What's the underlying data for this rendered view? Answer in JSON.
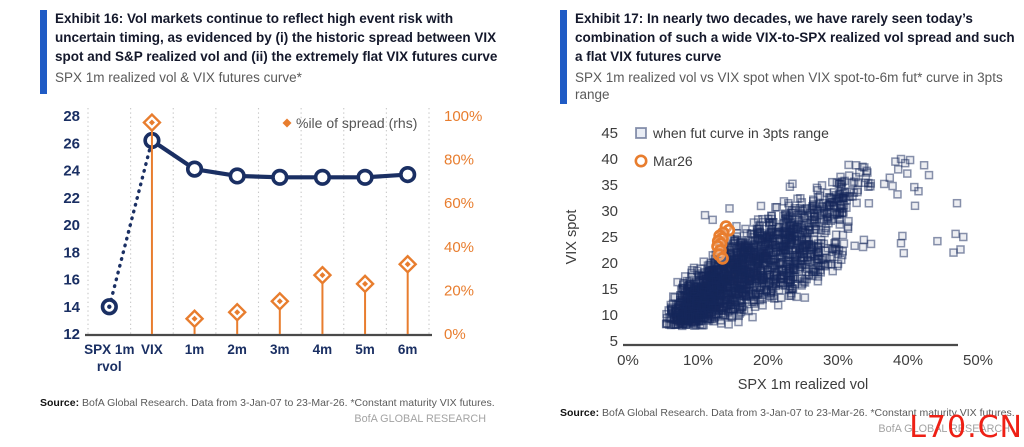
{
  "page": {
    "watermark": "L70.CN"
  },
  "colors": {
    "navy": "#1a2f63",
    "orange": "#e87d2e",
    "accent_bar_blue": "#1f5bc5",
    "grid": "#c8c8c8",
    "axis_line": "#4a4a4a",
    "axis_text_gray": "#3d3d3d",
    "legend_text": "#555555",
    "scatter_stroke": "rgba(21,40,92,0.5)",
    "scatter_fill": "rgba(21,40,92,0.08)",
    "watermark_red": "#ee2015"
  },
  "left_panel": {
    "exhibit_title": "Exhibit 16: Vol markets continue to reflect high event risk with uncertain timing, as evidenced by (i) the historic spread between VIX spot and S&P realized vol and (ii) the extremely flat VIX futures curve",
    "subtitle": "SPX 1m realized vol & VIX futures curve*",
    "source_label": "Source:",
    "source_text": " BofA Global Research. Data from 3-Jan-07 to 23-Mar-26. *Constant maturity VIX futures.",
    "brand": "BofA GLOBAL RESEARCH",
    "chart_data": {
      "type": "line",
      "categories": [
        "SPX 1m\nrvol",
        "VIX",
        "1m",
        "2m",
        "3m",
        "4m",
        "5m",
        "6m"
      ],
      "series": [
        {
          "name": "SPX 1m realized vol & VIX futures curve",
          "axis": "left",
          "values": [
            14.0,
            26.2,
            24.1,
            23.6,
            23.5,
            23.5,
            23.5,
            23.7
          ],
          "dotted_segment": [
            0,
            1
          ]
        },
        {
          "name": "%ile of spread (rhs)",
          "axis": "right",
          "marker": "diamond-lollipop",
          "values": [
            null,
            97,
            7,
            10,
            15,
            27,
            23,
            32
          ]
        }
      ],
      "left_axis": {
        "min": 12,
        "max": 28,
        "ticks": [
          12,
          14,
          16,
          18,
          20,
          22,
          24,
          26,
          28
        ]
      },
      "right_axis": {
        "min": 0,
        "max": 100,
        "ticks": [
          "0%",
          "20%",
          "40%",
          "60%",
          "80%",
          "100%"
        ]
      },
      "legend": [
        {
          "label": "%ile of spread (rhs)",
          "marker": "diamond"
        }
      ],
      "grid": "vertical-dotted"
    }
  },
  "right_panel": {
    "exhibit_title": "Exhibit 17: In nearly two decades, we have rarely seen today’s combination of such a wide VIX-to-SPX realized vol spread and such a flat VIX futures curve",
    "subtitle": "SPX 1m realized vol vs VIX spot when VIX spot-to-6m fut* curve in 3pts range",
    "source_label": "Source:",
    "source_text": " BofA Global Research. Data from 3-Jan-07 to 23-Mar-26. *Constant maturity VIX futures.",
    "brand": "BofA GLOBAL RESEARCH",
    "chart_data": {
      "type": "scatter",
      "xlabel": "SPX 1m realized vol",
      "ylabel": "VIX spot",
      "x_axis": {
        "min": 0,
        "max": 50,
        "ticks": [
          "0%",
          "10%",
          "20%",
          "30%",
          "40%",
          "50%"
        ]
      },
      "y_axis": {
        "min": 5,
        "max": 45,
        "ticks": [
          5,
          10,
          15,
          20,
          25,
          30,
          35,
          40,
          45
        ]
      },
      "legend": [
        {
          "label": "when fut curve in 3pts range",
          "marker": "square"
        },
        {
          "label": "Mar26",
          "marker": "circle"
        }
      ],
      "series": [
        {
          "name": "when fut curve in 3pts range",
          "marker": "square",
          "seed": 7,
          "clusters": [
            {
              "cx": 9.5,
              "cy": 12.5,
              "sx": 2.2,
              "sy": 2.4,
              "slope": 1.0,
              "n": 420
            },
            {
              "cx": 13.0,
              "cy": 16.0,
              "sx": 2.6,
              "sy": 3.2,
              "slope": 0.9,
              "n": 360
            },
            {
              "cx": 17.0,
              "cy": 20.0,
              "sx": 2.8,
              "sy": 3.6,
              "slope": 0.9,
              "n": 300
            },
            {
              "cx": 21.0,
              "cy": 23.0,
              "sx": 3.0,
              "sy": 3.6,
              "slope": 0.8,
              "n": 220
            },
            {
              "cx": 25.0,
              "cy": 26.5,
              "sx": 2.8,
              "sy": 3.2,
              "slope": 0.8,
              "n": 130
            },
            {
              "cx": 29.0,
              "cy": 30.0,
              "sx": 2.2,
              "sy": 3.0,
              "slope": 0.8,
              "n": 70
            },
            {
              "cx": 12.0,
              "cy": 10.8,
              "sx": 3.4,
              "sy": 1.3,
              "slope": 0.35,
              "n": 150
            },
            {
              "cx": 32.0,
              "cy": 34.0,
              "sx": 1.6,
              "sy": 2.4,
              "slope": 0.9,
              "n": 40
            },
            {
              "cx": 22.0,
              "cy": 16.5,
              "sx": 3.2,
              "sy": 2.0,
              "slope": 0.5,
              "n": 120
            },
            {
              "cx": 27.5,
              "cy": 21.5,
              "sx": 2.6,
              "sy": 2.0,
              "slope": 0.5,
              "n": 70
            }
          ],
          "outliers": [
            [
              38.2,
              39.5
            ],
            [
              39.0,
              40.0
            ],
            [
              39.6,
              39.2
            ],
            [
              40.3,
              39.8
            ],
            [
              38.6,
              38.0
            ],
            [
              39.9,
              37.2
            ],
            [
              37.4,
              36.4
            ],
            [
              36.6,
              35.2
            ],
            [
              40.9,
              34.6
            ],
            [
              41.5,
              33.8
            ],
            [
              42.3,
              38.8
            ],
            [
              43.0,
              36.9
            ],
            [
              37.8,
              34.8
            ],
            [
              38.5,
              33.2
            ],
            [
              41.0,
              31.0
            ],
            [
              47.0,
              31.5
            ],
            [
              39.2,
              25.2
            ],
            [
              39.0,
              23.8
            ],
            [
              39.4,
              21.9
            ],
            [
              44.2,
              24.2
            ],
            [
              46.8,
              25.6
            ],
            [
              47.9,
              25.0
            ],
            [
              47.5,
              22.6
            ],
            [
              46.5,
              22.0
            ],
            [
              33.5,
              38.5
            ],
            [
              34.2,
              37.4
            ],
            [
              32.6,
              38.8
            ],
            [
              11.0,
              29.2
            ],
            [
              14.5,
              30.5
            ],
            [
              12.1,
              28.3
            ]
          ],
          "bounds": {
            "xmin": 5.2,
            "xmax": 36.8,
            "ymin": 7.9,
            "ymax": 39.5
          }
        },
        {
          "name": "Mar26",
          "marker": "circle",
          "points": [
            [
              14.0,
              27.0
            ],
            [
              14.4,
              26.3
            ],
            [
              13.6,
              25.8
            ],
            [
              13.1,
              25.2
            ],
            [
              13.5,
              24.7
            ],
            [
              12.9,
              24.2
            ],
            [
              13.3,
              23.7
            ],
            [
              12.8,
              23.2
            ],
            [
              13.2,
              22.4
            ],
            [
              13.0,
              21.6
            ],
            [
              13.5,
              20.9
            ]
          ]
        }
      ]
    }
  }
}
